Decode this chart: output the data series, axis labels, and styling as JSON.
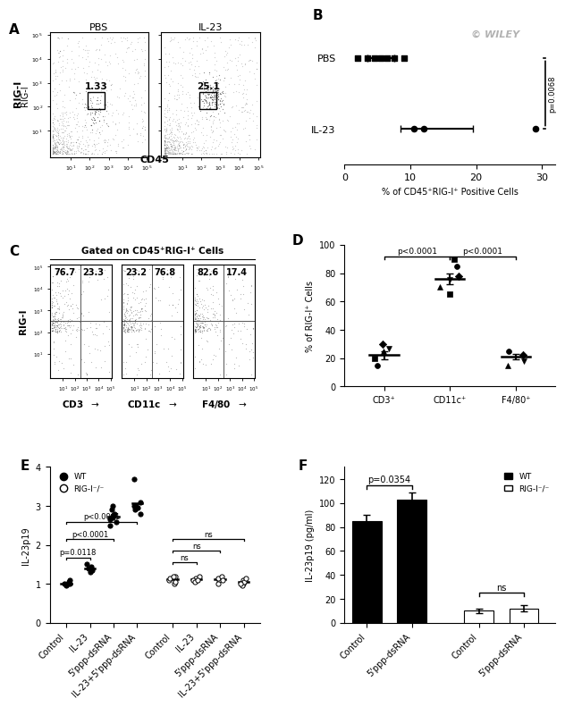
{
  "panel_A": {
    "label": "A",
    "pbs_label": "PBS",
    "il23_label": "IL-23",
    "pbs_gate": "1.33",
    "il23_gate": "25.1",
    "xaxis_label": "CD45",
    "yaxis_label": "RIG-I"
  },
  "panel_B": {
    "label": "B",
    "pbs_points": [
      2.0,
      3.5,
      4.5,
      5.5,
      6.5,
      7.5,
      9.0
    ],
    "il23_points": [
      10.5,
      12.0,
      29.0
    ],
    "pbs_mean": 5.5,
    "pbs_sem": 2.0,
    "il23_mean": 14.0,
    "il23_sem": 5.5,
    "xlabel": "% of CD45⁺RIG-I⁺ Positive Cells",
    "pvalue": "p=0.0068",
    "xlim": [
      0,
      32
    ]
  },
  "panel_C": {
    "label": "C",
    "title": "Gated on CD45⁺RIG-I⁺ Cells",
    "panels": [
      {
        "xlabel": "CD3",
        "values": [
          "76.7",
          "23.3"
        ]
      },
      {
        "xlabel": "CD11c",
        "values": [
          "23.2",
          "76.8"
        ]
      },
      {
        "xlabel": "F4/80",
        "values": [
          "82.6",
          "17.4"
        ]
      }
    ],
    "yaxis_label": "RIG-I"
  },
  "panel_D": {
    "label": "D",
    "categories": [
      "CD3⁺",
      "CD11c⁺",
      "F4/80⁺"
    ],
    "cd3_points": [
      15.0,
      20.0,
      25.0,
      27.0,
      30.0
    ],
    "cd11c_points": [
      65.0,
      70.0,
      75.0,
      78.0,
      85.0,
      90.0
    ],
    "f480_points": [
      15.0,
      18.0,
      22.0,
      25.0
    ],
    "cd3_mean": 22.0,
    "cd3_sem": 3.0,
    "cd11c_mean": 76.0,
    "cd11c_sem": 4.0,
    "f480_mean": 21.0,
    "f480_sem": 2.0,
    "ylabel": "% of RIG-I⁺ Cells",
    "pvalue1": "p<0.0001",
    "pvalue2": "p<0.0001",
    "ylim": [
      0,
      100
    ]
  },
  "panel_E": {
    "label": "E",
    "wt_label": "WT",
    "rigi_label": "RIG-I⁻/⁻",
    "categories": [
      "Control",
      "IL-23",
      "5'ppp-dsRNA",
      "IL-23+5'ppp-dsRNA"
    ],
    "wt_control": [
      1.0,
      1.0,
      1.05,
      1.1,
      1.0,
      0.95
    ],
    "wt_il23": [
      1.3,
      1.35,
      1.4,
      1.45,
      1.5,
      1.4
    ],
    "wt_5ppp": [
      2.5,
      2.6,
      2.7,
      2.8,
      2.9,
      3.0,
      2.65,
      2.75
    ],
    "wt_combo": [
      2.8,
      2.9,
      3.0,
      3.1,
      3.7,
      3.0,
      2.95
    ],
    "rigi_control": [
      1.2,
      1.1,
      1.0,
      1.05,
      1.15,
      1.2
    ],
    "rigi_il23": [
      1.1,
      1.15,
      1.2,
      1.1,
      1.05,
      1.1
    ],
    "rigi_5ppp": [
      1.1,
      1.15,
      1.2,
      1.1,
      1.0
    ],
    "rigi_combo": [
      1.0,
      0.95,
      1.1,
      1.05,
      1.15,
      1.0
    ],
    "ylabel": "IL-23p19",
    "ylim": [
      0,
      4
    ],
    "yticks": [
      0,
      1,
      2,
      3,
      4
    ],
    "pval1": "p=0.0118",
    "pval2": "p<0.0001",
    "pval3": "p<0.0001"
  },
  "panel_F": {
    "label": "F",
    "wt_label": "WT",
    "rigi_label": "RIG-I⁻/⁻",
    "wt_control_val": 85.0,
    "wt_control_err": 5.0,
    "wt_5ppp_val": 103.0,
    "wt_5ppp_err": 6.0,
    "rigi_control_val": 10.0,
    "rigi_control_err": 2.0,
    "rigi_5ppp_val": 12.0,
    "rigi_5ppp_err": 2.5,
    "ylabel": "IL-23p19 (pg/ml)",
    "ylim": [
      0,
      130
    ],
    "yticks": [
      0,
      20,
      40,
      60,
      80,
      100,
      120
    ],
    "pvalue": "p=0.0354",
    "pval_ns": "ns"
  },
  "background_color": "#ffffff"
}
